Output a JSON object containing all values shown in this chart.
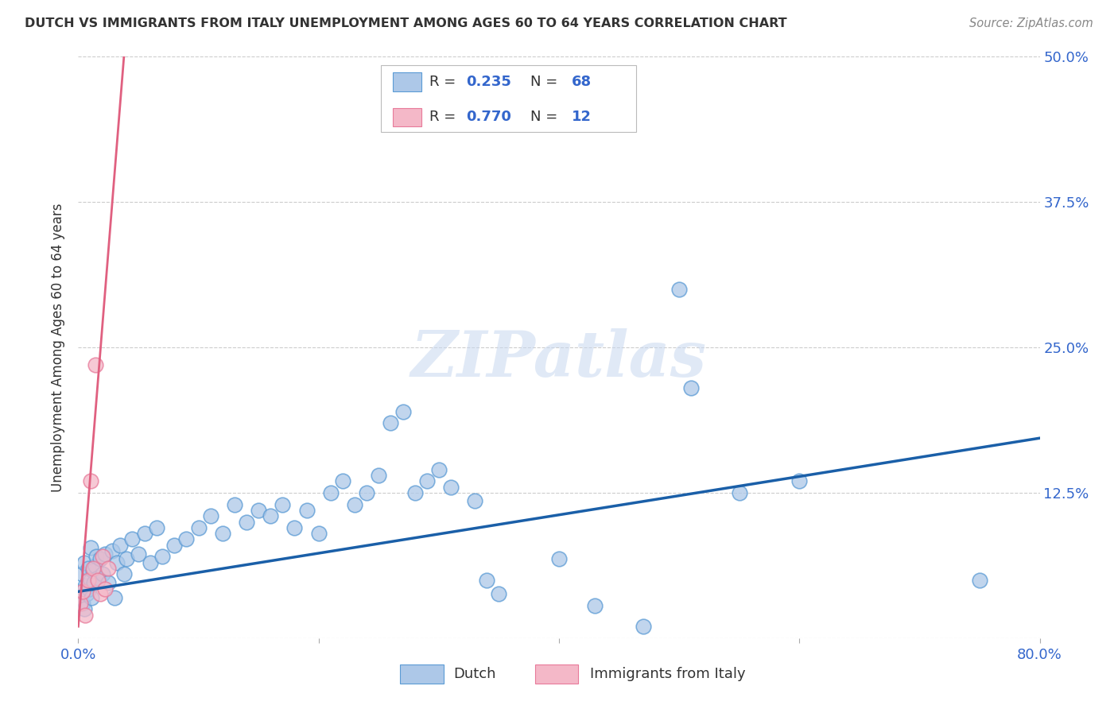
{
  "title": "DUTCH VS IMMIGRANTS FROM ITALY UNEMPLOYMENT AMONG AGES 60 TO 64 YEARS CORRELATION CHART",
  "source": "Source: ZipAtlas.com",
  "ylabel": "Unemployment Among Ages 60 to 64 years",
  "xlim": [
    0,
    0.8
  ],
  "ylim": [
    -0.02,
    0.52
  ],
  "plot_ylim": [
    0,
    0.5
  ],
  "xticks": [
    0.0,
    0.2,
    0.4,
    0.6,
    0.8
  ],
  "xtick_labels": [
    "0.0%",
    "",
    "",
    "",
    "80.0%"
  ],
  "yticks": [
    0.0,
    0.125,
    0.25,
    0.375,
    0.5
  ],
  "ytick_labels": [
    "",
    "12.5%",
    "25.0%",
    "37.5%",
    "50.0%"
  ],
  "dutch_R": 0.235,
  "dutch_N": 68,
  "italy_R": 0.77,
  "italy_N": 12,
  "dutch_color": "#adc8e8",
  "dutch_edge_color": "#5b9bd5",
  "italy_color": "#f4b8c8",
  "italy_edge_color": "#e87a9a",
  "dutch_x": [
    0.002,
    0.003,
    0.004,
    0.005,
    0.005,
    0.006,
    0.007,
    0.008,
    0.009,
    0.01,
    0.01,
    0.011,
    0.012,
    0.013,
    0.014,
    0.015,
    0.016,
    0.018,
    0.02,
    0.022,
    0.025,
    0.028,
    0.03,
    0.032,
    0.035,
    0.038,
    0.04,
    0.045,
    0.05,
    0.055,
    0.06,
    0.065,
    0.07,
    0.08,
    0.09,
    0.1,
    0.11,
    0.12,
    0.13,
    0.14,
    0.15,
    0.16,
    0.17,
    0.18,
    0.19,
    0.2,
    0.21,
    0.22,
    0.23,
    0.24,
    0.25,
    0.26,
    0.27,
    0.28,
    0.29,
    0.3,
    0.31,
    0.33,
    0.34,
    0.35,
    0.4,
    0.43,
    0.47,
    0.5,
    0.51,
    0.55,
    0.6,
    0.75
  ],
  "dutch_y": [
    0.04,
    0.055,
    0.03,
    0.065,
    0.025,
    0.045,
    0.038,
    0.06,
    0.042,
    0.05,
    0.078,
    0.035,
    0.058,
    0.048,
    0.062,
    0.07,
    0.052,
    0.068,
    0.055,
    0.072,
    0.048,
    0.075,
    0.035,
    0.065,
    0.08,
    0.055,
    0.068,
    0.085,
    0.072,
    0.09,
    0.065,
    0.095,
    0.07,
    0.08,
    0.085,
    0.095,
    0.105,
    0.09,
    0.115,
    0.1,
    0.11,
    0.105,
    0.115,
    0.095,
    0.11,
    0.09,
    0.125,
    0.135,
    0.115,
    0.125,
    0.14,
    0.185,
    0.195,
    0.125,
    0.135,
    0.145,
    0.13,
    0.118,
    0.05,
    0.038,
    0.068,
    0.028,
    0.01,
    0.3,
    0.215,
    0.125,
    0.135,
    0.05
  ],
  "italy_x": [
    0.002,
    0.004,
    0.006,
    0.008,
    0.01,
    0.012,
    0.014,
    0.016,
    0.018,
    0.02,
    0.022,
    0.025
  ],
  "italy_y": [
    0.03,
    0.04,
    0.02,
    0.05,
    0.135,
    0.06,
    0.235,
    0.05,
    0.038,
    0.07,
    0.042,
    0.06
  ],
  "dutch_trend_x0": 0.0,
  "dutch_trend_y0": 0.04,
  "dutch_trend_x1": 0.8,
  "dutch_trend_y1": 0.172,
  "italy_trend_x0": 0.0,
  "italy_trend_y0": 0.01,
  "italy_trend_x1": 0.038,
  "italy_trend_y1": 0.5,
  "watermark": "ZIPatlas",
  "background_color": "#ffffff",
  "grid_color": "#cccccc",
  "dutch_trend_color": "#1a5fa8",
  "italy_trend_color": "#e06080",
  "title_color": "#333333",
  "source_color": "#888888",
  "axis_label_color": "#333333",
  "tick_color": "#3366cc",
  "legend_R_color": "#3366cc",
  "legend_N_color": "#3366cc",
  "legend_text_color": "#333333"
}
